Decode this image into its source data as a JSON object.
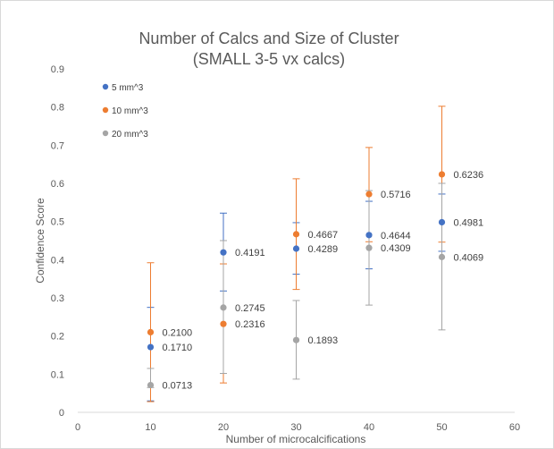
{
  "chart_data": {
    "type": "scatter",
    "title_line1": "Number of Calcs and Size of Cluster",
    "title_line2": "(SMALL 3-5 vx calcs)",
    "xlabel": "Number of microcalcifications",
    "ylabel": "Confidence Score",
    "xlim": [
      0,
      60
    ],
    "ylim": [
      0,
      0.9
    ],
    "x_ticks": [
      "0",
      "10",
      "20",
      "30",
      "40",
      "50",
      "60"
    ],
    "y_ticks": [
      "0",
      "0.1",
      "0.2",
      "0.3",
      "0.4",
      "0.5",
      "0.6",
      "0.7",
      "0.8",
      "0.9"
    ],
    "grid": false,
    "legend_position": "top-left",
    "series": [
      {
        "name": "5 mm^3",
        "color": "#4472c4",
        "x": [
          10,
          20,
          30,
          40,
          50
        ],
        "y": [
          0.171,
          0.4191,
          0.4289,
          0.4644,
          0.4981
        ],
        "labels": [
          "0.1710",
          "0.4191",
          "0.4289",
          "0.4644",
          "0.4981"
        ],
        "err_low": [
          0.03,
          0.318,
          0.362,
          0.376,
          0.422
        ],
        "err_high": [
          0.275,
          0.522,
          0.497,
          0.553,
          0.572
        ]
      },
      {
        "name": "10 mm^3",
        "color": "#ed7d31",
        "x": [
          10,
          20,
          30,
          40,
          50
        ],
        "y": [
          0.21,
          0.2316,
          0.4667,
          0.5716,
          0.6236
        ],
        "labels": [
          "0.2100",
          "0.2316",
          "0.4667",
          "0.5716",
          "0.6236"
        ],
        "err_low": [
          0.028,
          0.077,
          0.322,
          0.447,
          0.446
        ],
        "err_high": [
          0.392,
          0.389,
          0.612,
          0.694,
          0.802
        ]
      },
      {
        "name": "20 mm^3",
        "color": "#a5a5a5",
        "x": [
          10,
          20,
          30,
          40,
          50
        ],
        "y": [
          0.0713,
          0.2745,
          0.1893,
          0.4309,
          0.4069
        ],
        "labels": [
          "0.0713",
          "0.2745",
          "0.1893",
          "0.4309",
          "0.4069"
        ],
        "err_low": [
          0.065,
          0.102,
          0.087,
          0.281,
          0.216
        ],
        "err_high": [
          0.115,
          0.45,
          0.293,
          0.581,
          0.6
        ]
      }
    ]
  }
}
